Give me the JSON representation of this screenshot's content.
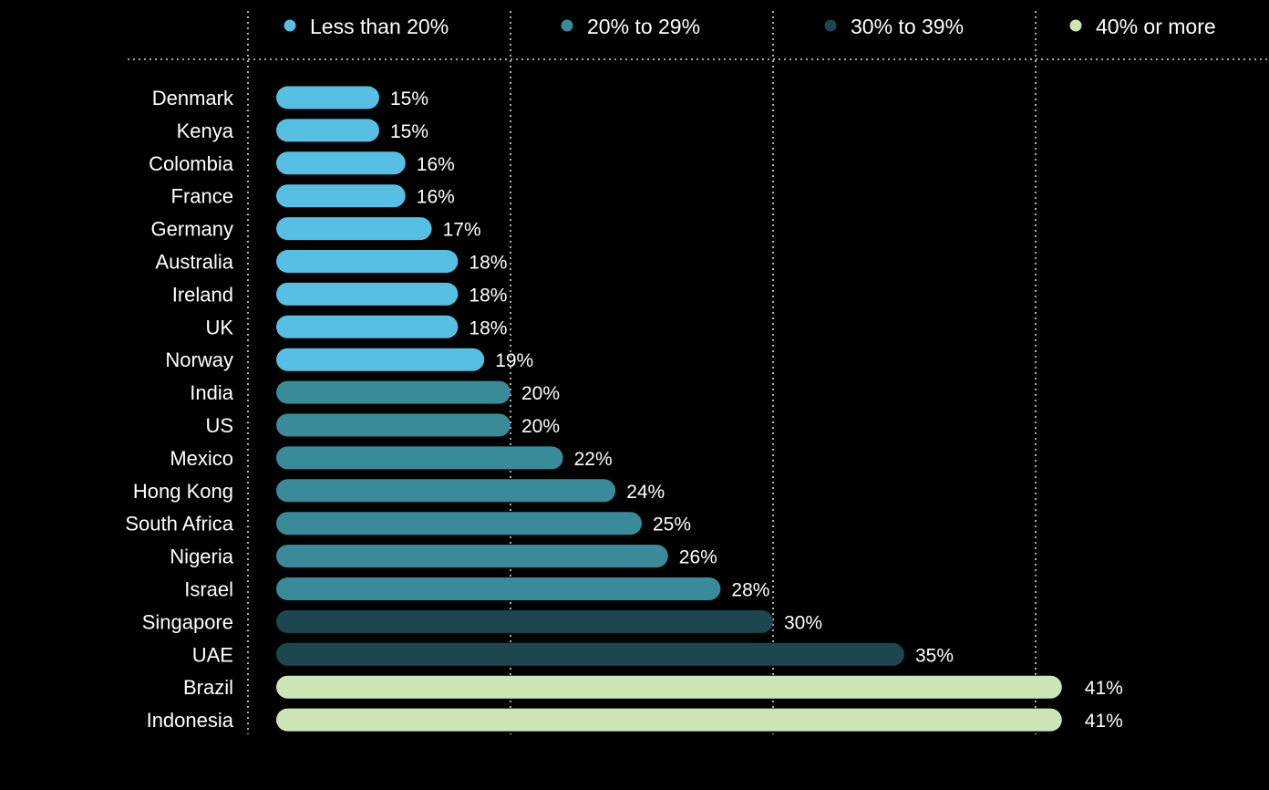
{
  "colors": {
    "background": "#000000",
    "grid": "#d8d8d8",
    "text": "#ffffff"
  },
  "legend": [
    {
      "label": "Less than 20%",
      "color": "#56bfe3"
    },
    {
      "label": "20% to 29%",
      "color": "#3a8b9a"
    },
    {
      "label": "30% to 39%",
      "color": "#1c4650"
    },
    {
      "label": "40% or more",
      "color": "#cde4b4"
    }
  ],
  "chart_data": {
    "type": "bar",
    "orientation": "horizontal",
    "title": "",
    "xlabel": "",
    "ylabel": "",
    "xlim": [
      10,
      42
    ],
    "gridlines_at": [
      10,
      20,
      30,
      40
    ],
    "grid": true,
    "legend_position": "top",
    "categories": [
      "Denmark",
      "Kenya",
      "Colombia",
      "France",
      "Germany",
      "Australia",
      "Ireland",
      "UK",
      "Norway",
      "India",
      "US",
      "Mexico",
      "Hong Kong",
      "South Africa",
      "Nigeria",
      "Israel",
      "Singapore",
      "UAE",
      "Brazil",
      "Indonesia"
    ],
    "values": [
      15,
      15,
      16,
      16,
      17,
      18,
      18,
      18,
      19,
      20,
      20,
      22,
      24,
      25,
      26,
      28,
      30,
      35,
      41,
      41
    ],
    "value_labels": [
      "15%",
      "15%",
      "16%",
      "16%",
      "17%",
      "18%",
      "18%",
      "18%",
      "19%",
      "20%",
      "20%",
      "22%",
      "24%",
      "25%",
      "26%",
      "28%",
      "30%",
      "35%",
      "41%",
      "41%"
    ],
    "group": [
      0,
      0,
      0,
      0,
      0,
      0,
      0,
      0,
      0,
      1,
      1,
      1,
      1,
      1,
      1,
      1,
      2,
      2,
      3,
      3
    ]
  }
}
